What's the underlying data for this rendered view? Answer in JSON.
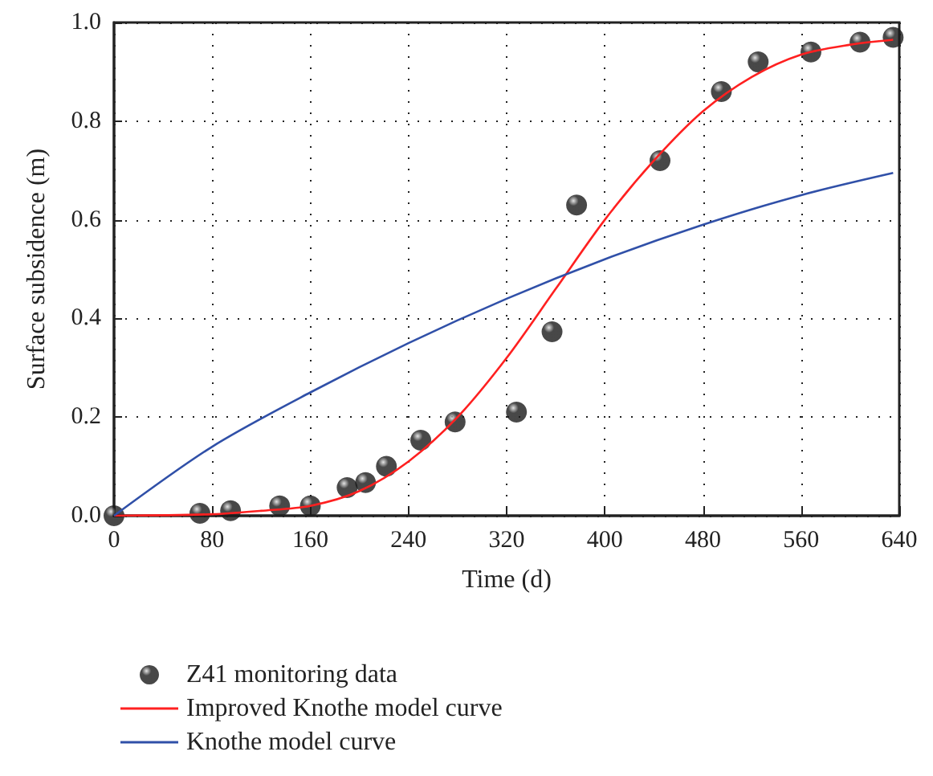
{
  "chart_data": {
    "type": "scatter",
    "xlabel": "Time (d)",
    "ylabel": "Surface subsidence (m)",
    "xlim": [
      0,
      640
    ],
    "xticks": [
      0,
      80,
      160,
      240,
      320,
      400,
      480,
      560,
      640
    ],
    "ylim": [
      0,
      1
    ],
    "yticks": [
      {
        "value": 0,
        "label": "0.0"
      },
      {
        "value": 0.2,
        "label": "0.2"
      },
      {
        "value": 0.4,
        "label": "0.4"
      },
      {
        "value": 0.6,
        "label": "0.6"
      },
      {
        "value": 0.8,
        "label": "0.8"
      },
      {
        "value": 1,
        "label": "1.0"
      }
    ],
    "grid": true,
    "legend": "bottom left",
    "marker": "circle",
    "series": [
      {
        "name": "Z41 monitoring data",
        "color": "#1a1a1a",
        "x": [
          0,
          70,
          95,
          135,
          160,
          190,
          205,
          222,
          250,
          278,
          328,
          357,
          377,
          445,
          495,
          525,
          568,
          608,
          635
        ],
        "values": [
          0,
          0.005,
          0.01,
          0.02,
          0.02,
          0.057,
          0.067,
          0.1,
          0.153,
          0.19,
          0.21,
          0.373,
          0.63,
          0.72,
          0.86,
          0.92,
          0.94,
          0.96,
          0.97
        ]
      },
      {
        "name": "Improved Knothe model curve",
        "type": "line",
        "color": "#ff2020",
        "marker": "none",
        "line_style": "solid",
        "x": [
          0,
          80,
          120,
          160,
          200,
          240,
          280,
          320,
          360,
          400,
          440,
          480,
          520,
          560,
          600,
          635
        ],
        "values": [
          0,
          0.003,
          0.01,
          0.02,
          0.05,
          0.11,
          0.2,
          0.32,
          0.46,
          0.6,
          0.72,
          0.82,
          0.89,
          0.935,
          0.955,
          0.965
        ]
      },
      {
        "name": "Knothe model curve",
        "type": "line",
        "color": "#3050a8",
        "marker": "none",
        "line_style": "solid",
        "x": [
          0,
          80,
          160,
          240,
          320,
          400,
          480,
          560,
          635
        ],
        "values": [
          0,
          0.14,
          0.25,
          0.35,
          0.44,
          0.52,
          0.59,
          0.65,
          0.695
        ]
      }
    ]
  }
}
